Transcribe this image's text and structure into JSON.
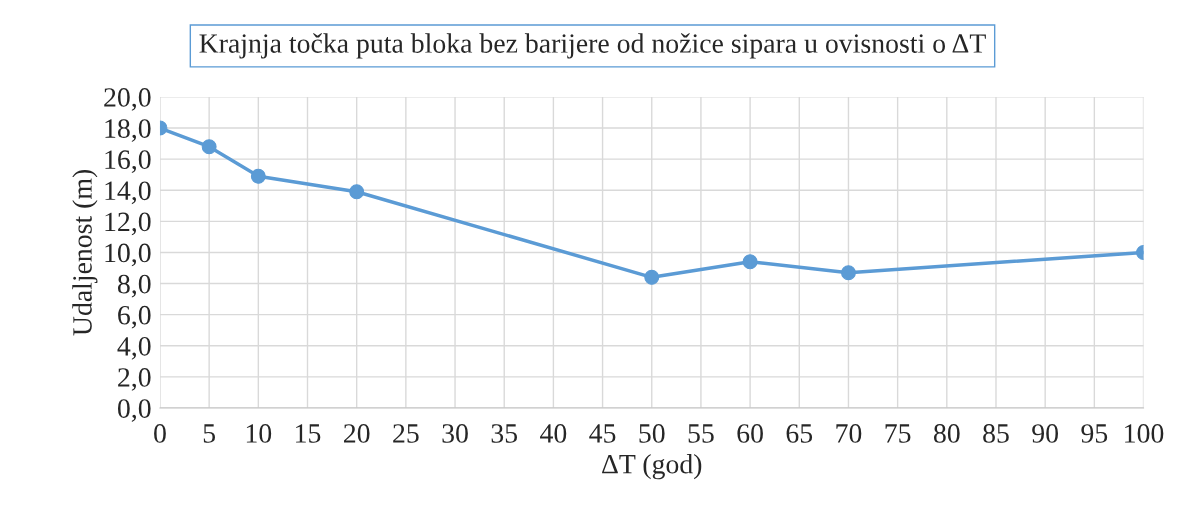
{
  "chart_data": {
    "type": "line",
    "title": "Krajnja točka puta bloka bez barijere od nožice sipara u ovisnosti o ΔT",
    "xlabel": "ΔT (god)",
    "ylabel": "Udaljenost (m)",
    "x": [
      0,
      5,
      10,
      20,
      50,
      60,
      70,
      100
    ],
    "series": [
      {
        "color": "#5b9bd5",
        "values": [
          18.0,
          16.8,
          14.9,
          13.9,
          8.4,
          9.4,
          8.7,
          10.0
        ]
      }
    ],
    "xlim": [
      0,
      100
    ],
    "xticks": [
      0,
      5,
      10,
      15,
      20,
      25,
      30,
      35,
      40,
      45,
      50,
      55,
      60,
      65,
      70,
      75,
      80,
      85,
      90,
      95,
      100
    ],
    "ylim": [
      0,
      20
    ],
    "yticks": [
      {
        "value": 0,
        "label": "0,0"
      },
      {
        "value": 2,
        "label": "2,0"
      },
      {
        "value": 4,
        "label": "4,0"
      },
      {
        "value": 6,
        "label": "6,0"
      },
      {
        "value": 8,
        "label": "8,0"
      },
      {
        "value": 10,
        "label": "10,0"
      },
      {
        "value": 12,
        "label": "12,0"
      },
      {
        "value": 14,
        "label": "14,0"
      },
      {
        "value": 16,
        "label": "16,0"
      },
      {
        "value": 18,
        "label": "18,0"
      },
      {
        "value": 20,
        "label": "20,0"
      }
    ],
    "grid": true,
    "marker": "circle",
    "line_style": "solid"
  }
}
